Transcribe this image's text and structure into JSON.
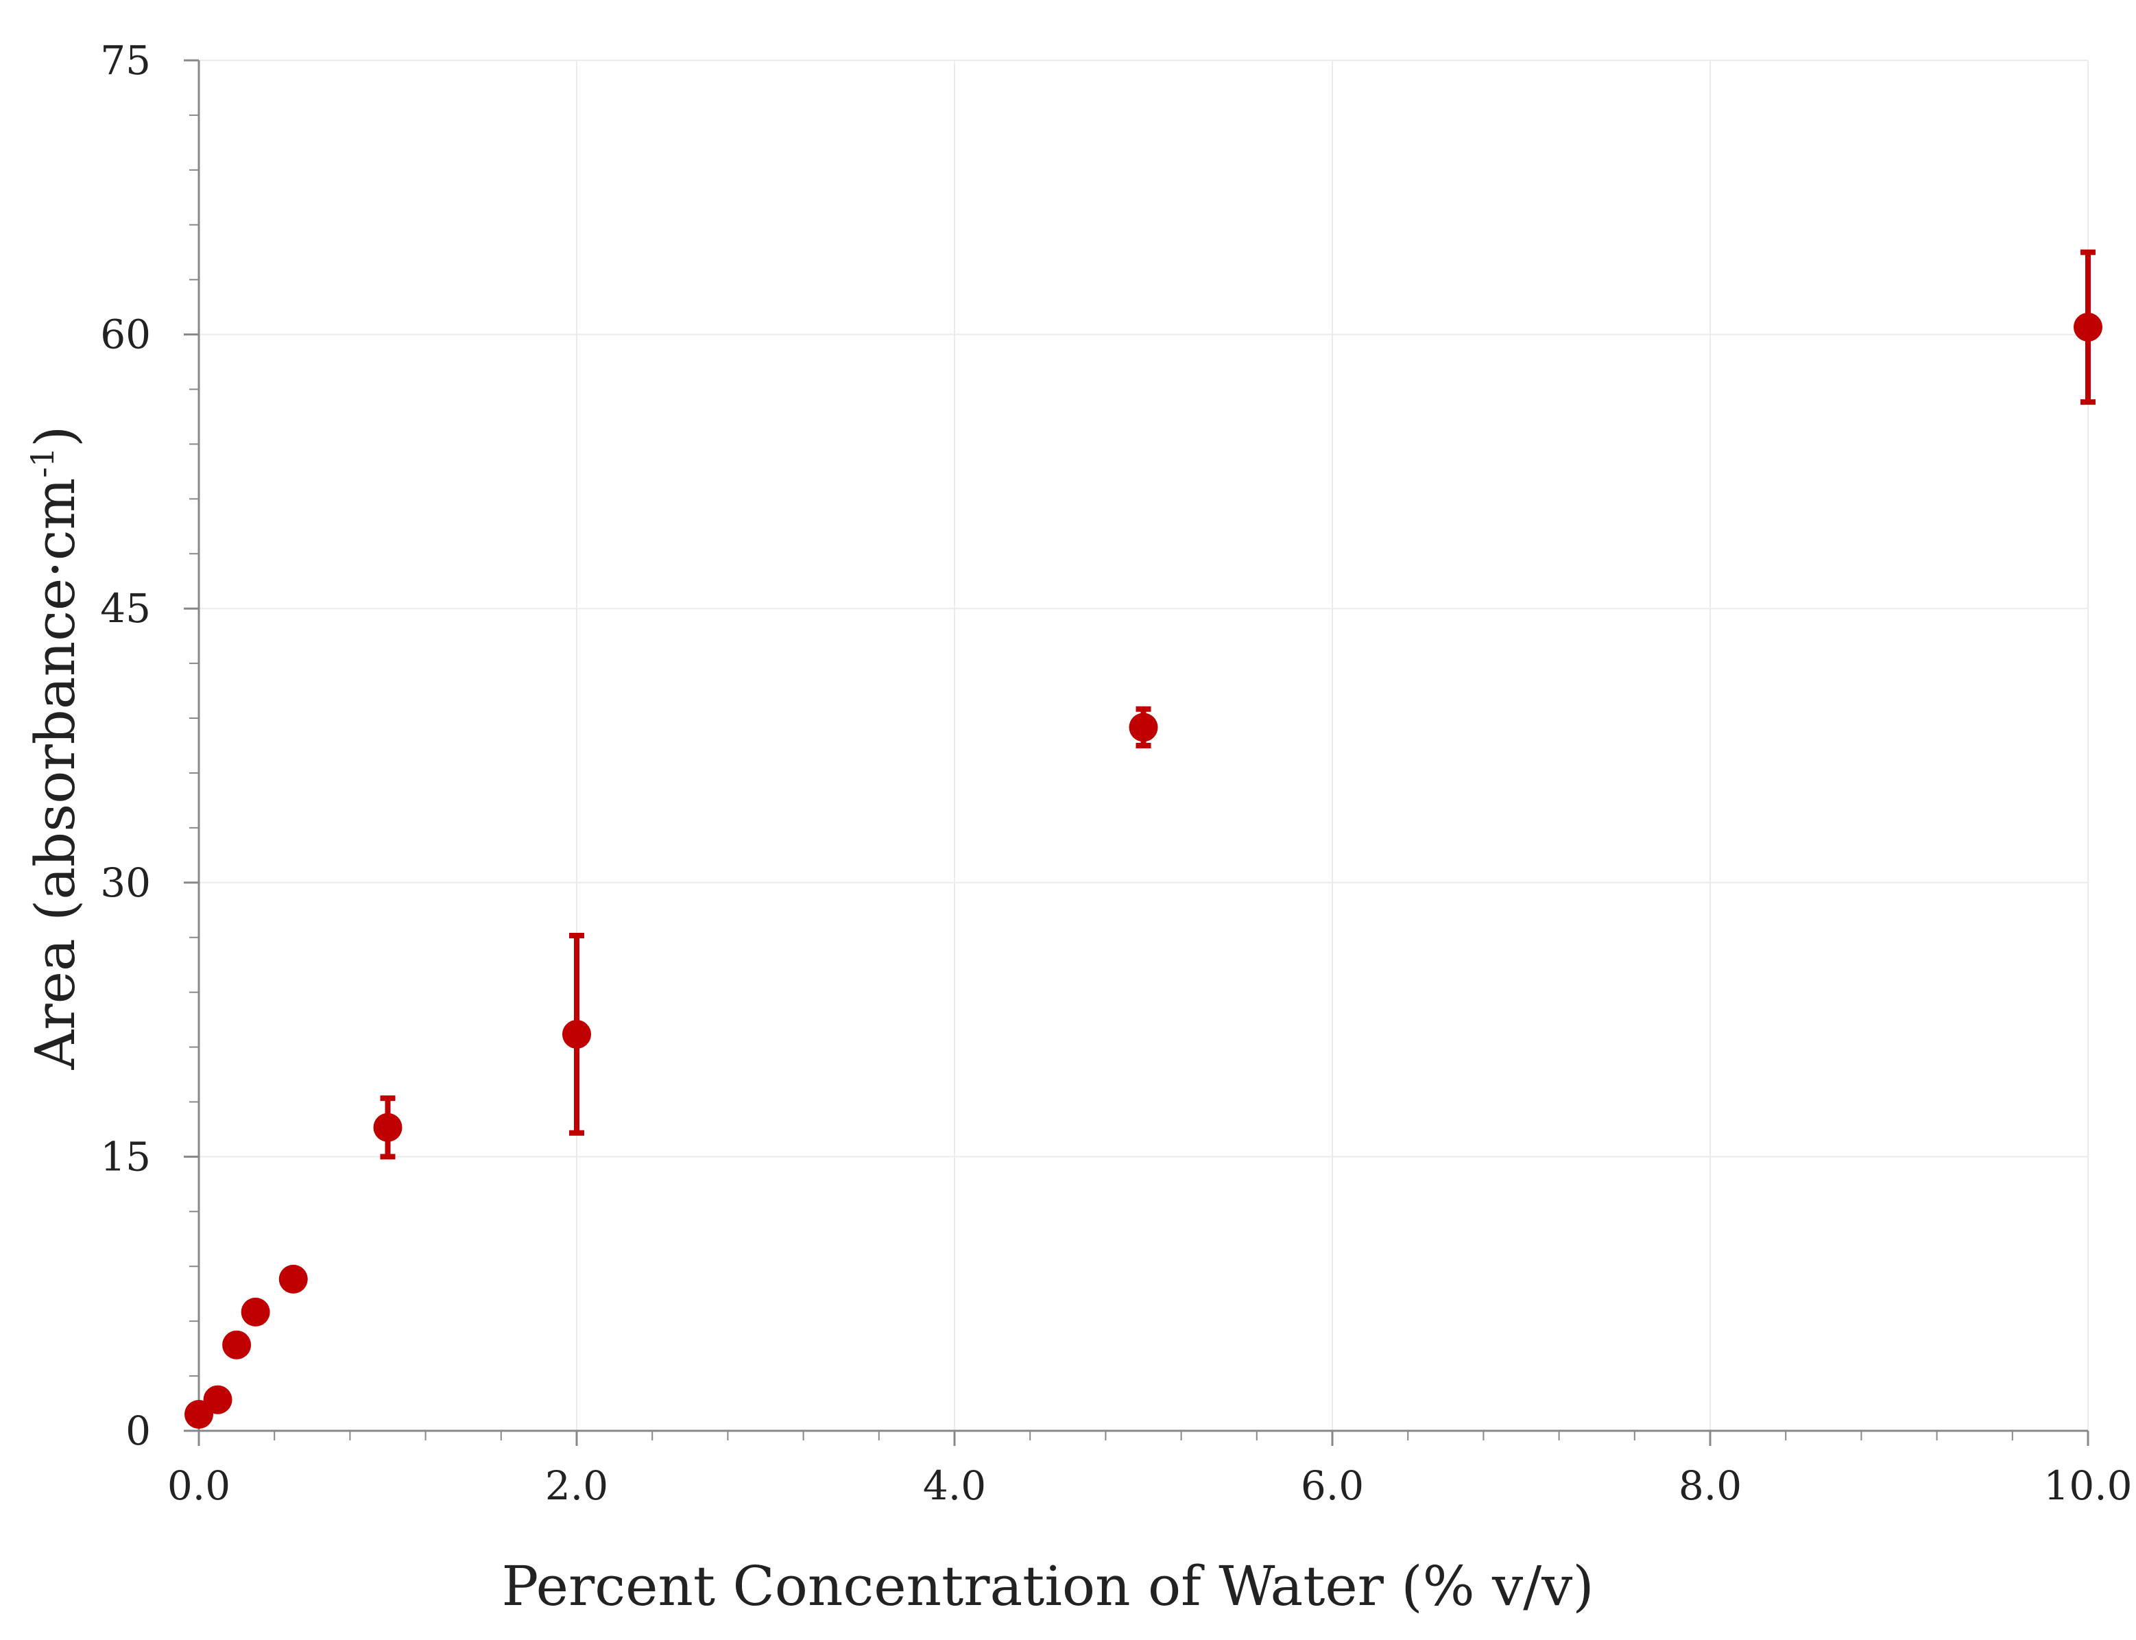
{
  "chart_data": {
    "type": "scatter",
    "title": "",
    "xlabel": "Percent Concentration of Water (% v/v)",
    "ylabel_main": "Area (absorbance·cm",
    "ylabel_sup": "-1",
    "ylabel_close": ")",
    "xlim": [
      0,
      10
    ],
    "ylim": [
      0,
      75
    ],
    "x_ticks": [
      0,
      2,
      4,
      6,
      8,
      10
    ],
    "x_tick_labels": [
      "0.0",
      "2.0",
      "4.0",
      "6.0",
      "8.0",
      "10.0"
    ],
    "y_ticks": [
      0,
      15,
      30,
      45,
      60,
      75
    ],
    "y_tick_labels": [
      "0",
      "15",
      "30",
      "45",
      "60",
      "75"
    ],
    "x_minor_step": 0.4,
    "y_minor_step": 3,
    "grid": true,
    "legend": "none",
    "colors": {
      "marker": "#c00000",
      "grid": "#ebebeb",
      "axis": "#888888",
      "text": "#222222"
    },
    "series": [
      {
        "name": "Area",
        "x": [
          0,
          0.1,
          0.2,
          0.3,
          0.5,
          1,
          2,
          5,
          10
        ],
        "y": [
          0.9,
          1.7,
          4.7,
          6.5,
          8.3,
          16.6,
          21.7,
          38.5,
          60.4
        ],
        "error": [
          0,
          0,
          0,
          0,
          0,
          1.6,
          5.4,
          1.0,
          4.1
        ]
      }
    ]
  }
}
